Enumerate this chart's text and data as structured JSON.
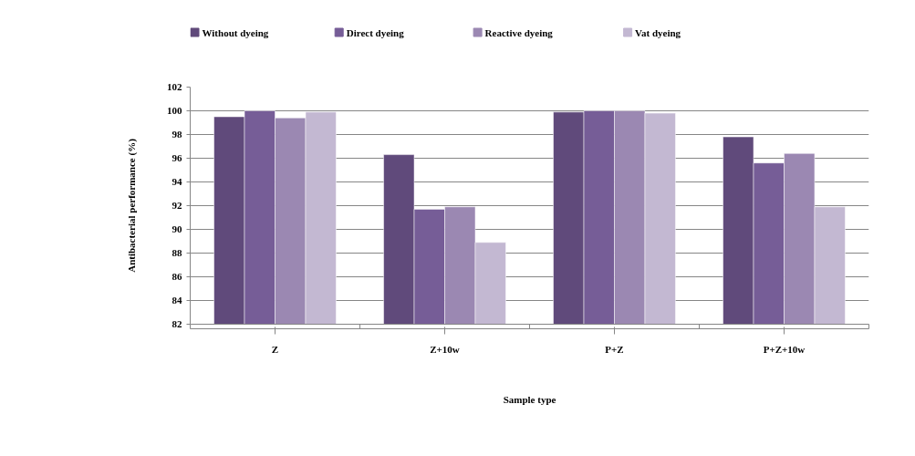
{
  "chart_data": {
    "type": "bar",
    "xlabel": "Sample type",
    "ylabel": "Antibacterial performance (%)",
    "categories": [
      "Z",
      "Z+10w",
      "P+Z",
      "P+Z+10w"
    ],
    "series": [
      {
        "name": "Without dyeing",
        "color": "#604a7b",
        "values": [
          99.5,
          96.3,
          99.9,
          97.8
        ]
      },
      {
        "name": "Direct dyeing",
        "color": "#765d97",
        "values": [
          100,
          91.7,
          100,
          95.6
        ]
      },
      {
        "name": "Reactive dyeing",
        "color": "#9b88b2",
        "values": [
          99.4,
          91.9,
          100,
          96.4
        ]
      },
      {
        "name": "Vat dyeing",
        "color": "#c3b8d2",
        "values": [
          99.9,
          88.9,
          99.8,
          91.9
        ]
      }
    ],
    "ylim": [
      82,
      102
    ],
    "yticks": [
      82,
      84,
      86,
      88,
      90,
      92,
      94,
      96,
      98,
      100,
      102
    ],
    "grid": "y",
    "legend": "top"
  }
}
